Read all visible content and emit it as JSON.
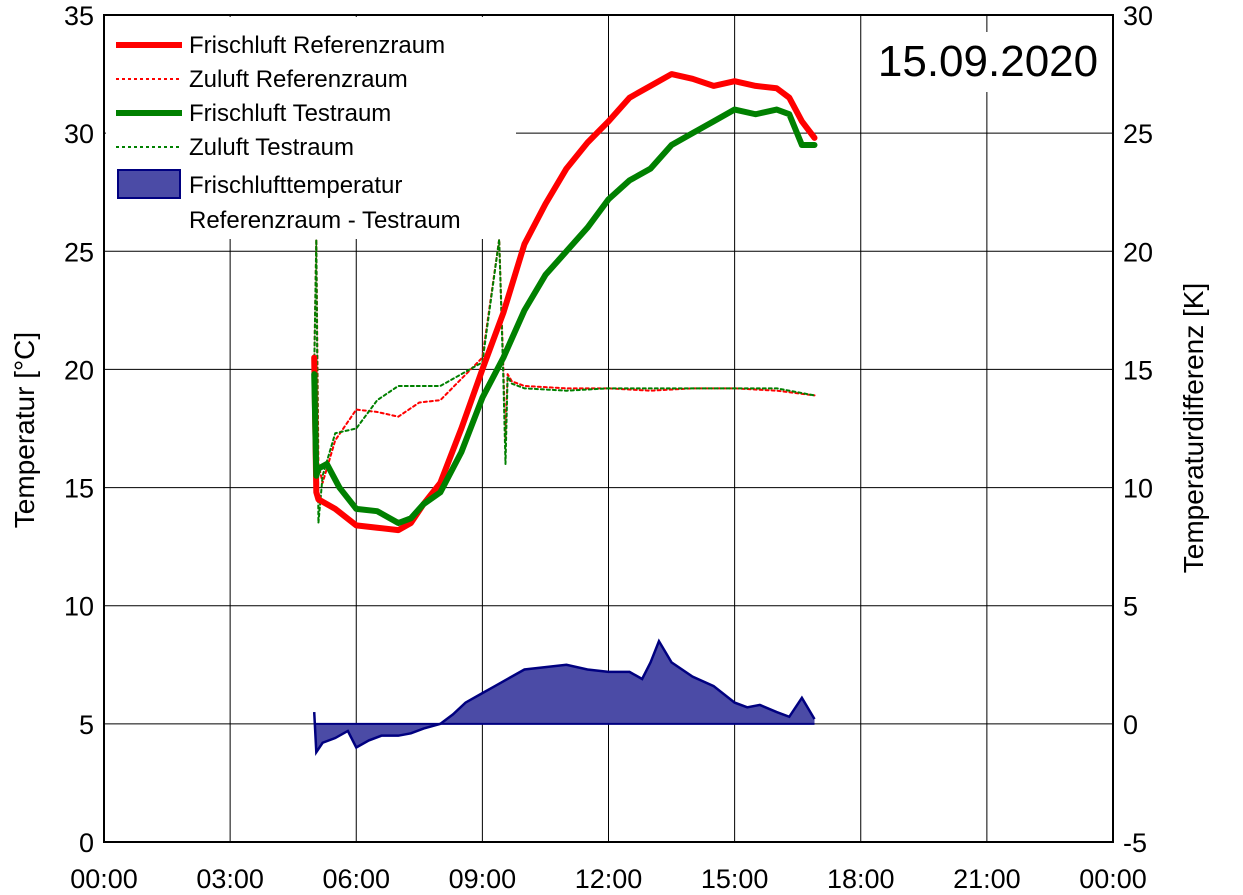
{
  "chart_data": {
    "type": "line",
    "annotation": "15.09.2020",
    "xlabel": "",
    "ylabel": "Temperatur [°C]",
    "y2label": "Temperaturdifferenz [K]",
    "xlim_hours": [
      0,
      24
    ],
    "ylim": [
      0,
      35
    ],
    "y2lim": [
      -5,
      30
    ],
    "x_tick_labels": [
      "00:00",
      "03:00",
      "06:00",
      "09:00",
      "12:00",
      "15:00",
      "18:00",
      "21:00",
      "00:00"
    ],
    "y_tick_labels": [
      "0",
      "5",
      "10",
      "15",
      "20",
      "25",
      "30",
      "35"
    ],
    "y2_tick_labels": [
      "-5",
      "0",
      "5",
      "10",
      "15",
      "20",
      "25",
      "30"
    ],
    "grid": true,
    "legend_position": "top-left",
    "x_unit": "hours",
    "series": [
      {
        "name": "Frischluft Referenzraum",
        "color": "#ff0000",
        "style": "solid-thick",
        "axis": "left",
        "x": [
          5.0,
          5.05,
          5.1,
          5.5,
          6.0,
          6.5,
          7.0,
          7.3,
          7.6,
          8.0,
          8.5,
          9.0,
          9.5,
          10.0,
          10.5,
          11.0,
          11.5,
          12.0,
          12.5,
          13.0,
          13.5,
          14.0,
          14.5,
          15.0,
          15.5,
          16.0,
          16.3,
          16.6,
          16.9
        ],
        "values": [
          20.5,
          14.8,
          14.5,
          14.1,
          13.4,
          13.3,
          13.2,
          13.5,
          14.3,
          15.2,
          17.5,
          20.0,
          22.4,
          25.3,
          27.0,
          28.5,
          29.6,
          30.5,
          31.5,
          32.0,
          32.5,
          32.3,
          32.0,
          32.2,
          32.0,
          31.9,
          31.5,
          30.5,
          29.8
        ]
      },
      {
        "name": "Zuluft Referenzraum",
        "color": "#ff0000",
        "style": "dotted",
        "axis": "left",
        "x": [
          5.0,
          5.05,
          5.1,
          5.2,
          5.5,
          6.0,
          6.5,
          7.0,
          7.5,
          8.0,
          8.5,
          9.0,
          9.4,
          9.5,
          9.55,
          9.6,
          9.7,
          10.0,
          11.0,
          12.0,
          13.0,
          14.0,
          15.0,
          16.0,
          16.9
        ],
        "values": [
          20.0,
          25.5,
          16.0,
          15.2,
          17.0,
          18.3,
          18.2,
          18.0,
          18.6,
          18.7,
          19.6,
          20.5,
          25.5,
          20.0,
          17.0,
          19.8,
          19.5,
          19.3,
          19.2,
          19.2,
          19.1,
          19.2,
          19.2,
          19.1,
          18.9
        ]
      },
      {
        "name": "Frischluft Testraum",
        "color": "#008000",
        "style": "solid-thick",
        "axis": "left",
        "x": [
          5.0,
          5.05,
          5.1,
          5.3,
          5.6,
          6.0,
          6.5,
          7.0,
          7.3,
          7.6,
          8.0,
          8.5,
          9.0,
          9.5,
          10.0,
          10.5,
          11.0,
          11.5,
          12.0,
          12.5,
          13.0,
          13.5,
          14.0,
          14.5,
          15.0,
          15.5,
          16.0,
          16.3,
          16.6,
          16.9
        ],
        "values": [
          19.8,
          15.5,
          15.8,
          16.0,
          15.0,
          14.1,
          14.0,
          13.5,
          13.7,
          14.3,
          14.8,
          16.5,
          18.8,
          20.5,
          22.5,
          24.0,
          25.0,
          26.0,
          27.2,
          28.0,
          28.5,
          29.5,
          30.0,
          30.5,
          31.0,
          30.8,
          31.0,
          30.8,
          29.5,
          29.5
        ]
      },
      {
        "name": "Zuluft Testraum",
        "color": "#008000",
        "style": "dotted",
        "axis": "left",
        "x": [
          5.0,
          5.05,
          5.1,
          5.2,
          5.5,
          6.0,
          6.5,
          7.0,
          7.5,
          8.0,
          8.5,
          9.0,
          9.4,
          9.5,
          9.55,
          9.6,
          9.7,
          10.0,
          11.0,
          12.0,
          13.0,
          14.0,
          15.0,
          16.0,
          16.9
        ],
        "values": [
          20.0,
          25.5,
          13.5,
          15.5,
          17.3,
          17.5,
          18.7,
          19.3,
          19.3,
          19.3,
          19.8,
          20.3,
          25.5,
          19.5,
          16.0,
          19.7,
          19.4,
          19.2,
          19.1,
          19.2,
          19.2,
          19.2,
          19.2,
          19.2,
          18.9
        ]
      },
      {
        "name": "Frischlufttemperatur Referenzraum - Testraum",
        "color": "#000080",
        "fill": "#4b4ba6",
        "style": "area",
        "axis": "right",
        "x": [
          5.0,
          5.05,
          5.2,
          5.5,
          5.8,
          6.0,
          6.3,
          6.6,
          7.0,
          7.3,
          7.6,
          8.0,
          8.3,
          8.6,
          9.0,
          9.3,
          9.6,
          10.0,
          10.5,
          11.0,
          11.5,
          12.0,
          12.5,
          12.8,
          13.0,
          13.2,
          13.5,
          14.0,
          14.5,
          15.0,
          15.3,
          15.6,
          16.0,
          16.3,
          16.6,
          16.9
        ],
        "values": [
          0.5,
          -1.2,
          -0.8,
          -0.6,
          -0.3,
          -1.0,
          -0.7,
          -0.5,
          -0.5,
          -0.4,
          -0.2,
          0.0,
          0.4,
          0.9,
          1.3,
          1.6,
          1.9,
          2.3,
          2.4,
          2.5,
          2.3,
          2.2,
          2.2,
          1.9,
          2.6,
          3.5,
          2.6,
          2.0,
          1.6,
          0.9,
          0.7,
          0.8,
          0.5,
          0.3,
          1.1,
          0.2
        ]
      }
    ]
  },
  "legend": {
    "items": [
      {
        "label": "Frischluft Referenzraum",
        "color": "#ff0000",
        "style": "solid"
      },
      {
        "label": "Zuluft Referenzraum",
        "color": "#ff0000",
        "style": "dotted"
      },
      {
        "label": "Frischluft Testraum",
        "color": "#008000",
        "style": "solid"
      },
      {
        "label": "Zuluft Testraum",
        "color": "#008000",
        "style": "dotted"
      }
    ],
    "area_item": {
      "line1": "Frischlufttemperatur",
      "line2": "Referenzraum - Testraum",
      "fill": "#4b4ba6",
      "stroke": "#000080"
    }
  }
}
